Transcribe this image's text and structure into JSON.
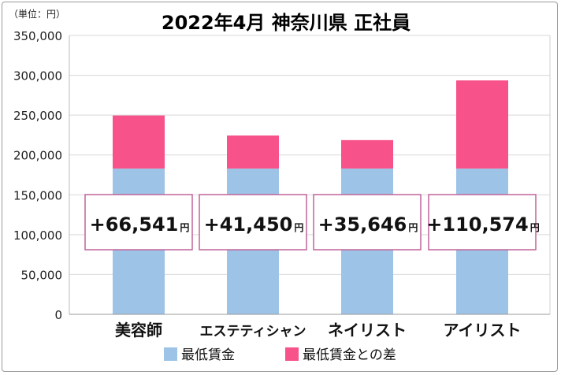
{
  "chart_data": {
    "type": "bar",
    "stacked": true,
    "title": "2022年4月 神奈川県 正社員",
    "unit_label": "（単位：円）",
    "categories": [
      "美容師",
      "エステティシャン",
      "ネイリスト",
      "アイリスト"
    ],
    "series": [
      {
        "name": "最低賃金",
        "color": "#9dc3e6",
        "values": [
          183000,
          183000,
          183000,
          183000
        ]
      },
      {
        "name": "最低賃金との差",
        "color": "#f7528a",
        "values": [
          66541,
          41450,
          35646,
          110574
        ]
      }
    ],
    "difference_labels": [
      "+66,541",
      "+41,450",
      "+35,646",
      "+110,574"
    ],
    "difference_unit": "円",
    "y_ticks": [
      "0",
      "50,000",
      "100,000",
      "150,000",
      "200,000",
      "250,000",
      "300,000",
      "350,000"
    ],
    "ylim": [
      0,
      350000
    ],
    "grid": true,
    "legend_position": "bottom",
    "colors": {
      "min_wage": "#9dc3e6",
      "difference": "#f7528a",
      "label_border": "#c0649a",
      "grid": "#d9d9d9"
    }
  }
}
